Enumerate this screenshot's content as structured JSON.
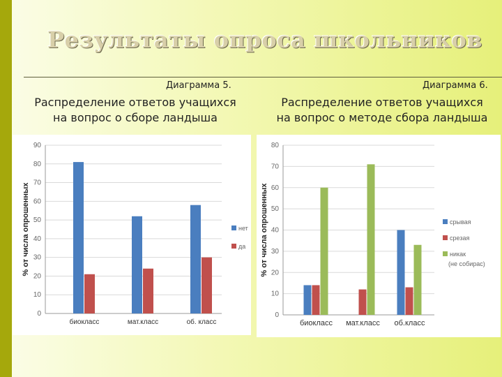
{
  "title": "Результаты опроса школьников",
  "chart_data": [
    {
      "type": "bar",
      "diagram_label": "Диаграмма 5.",
      "caption_line1": "Распределение ответов учащихся",
      "caption_line2": "на вопрос о сборе ландыша",
      "ylabel": "% от числа опрошенных",
      "ylim": [
        0,
        90
      ],
      "yticks": [
        "0",
        "10",
        "20",
        "30",
        "40",
        "50",
        "60",
        "70",
        "80",
        "90"
      ],
      "categories": [
        "биокласс",
        "мат.класс",
        "об. класс"
      ],
      "series": [
        {
          "name": "нет",
          "color": "#4a7ebf",
          "values": [
            81,
            52,
            58
          ]
        },
        {
          "name": "да",
          "color": "#c0504d",
          "values": [
            21,
            24,
            30
          ]
        }
      ],
      "legend": "right",
      "grid": true
    },
    {
      "type": "bar",
      "diagram_label": "Диаграмма 6.",
      "caption_line1": "Распределение ответов учащихся",
      "caption_line2": "на вопрос о методе сбора ландыша",
      "ylabel": "% от числа опрошенных",
      "ylim": [
        0,
        80
      ],
      "yticks": [
        "0",
        "10",
        "20",
        "30",
        "40",
        "50",
        "60",
        "70",
        "80"
      ],
      "categories": [
        "биокласс",
        "мат.класс",
        "об.класс"
      ],
      "series": [
        {
          "name": "срывая",
          "color": "#4a7ebf",
          "values": [
            14,
            0,
            40
          ]
        },
        {
          "name": "срезая",
          "color": "#c0504d",
          "values": [
            14,
            12,
            13
          ]
        },
        {
          "name": "никак",
          "color": "#9bbb59",
          "values": [
            60,
            71,
            33
          ]
        }
      ],
      "legend_note": "(не собирас)",
      "legend": "right",
      "grid": true
    }
  ]
}
